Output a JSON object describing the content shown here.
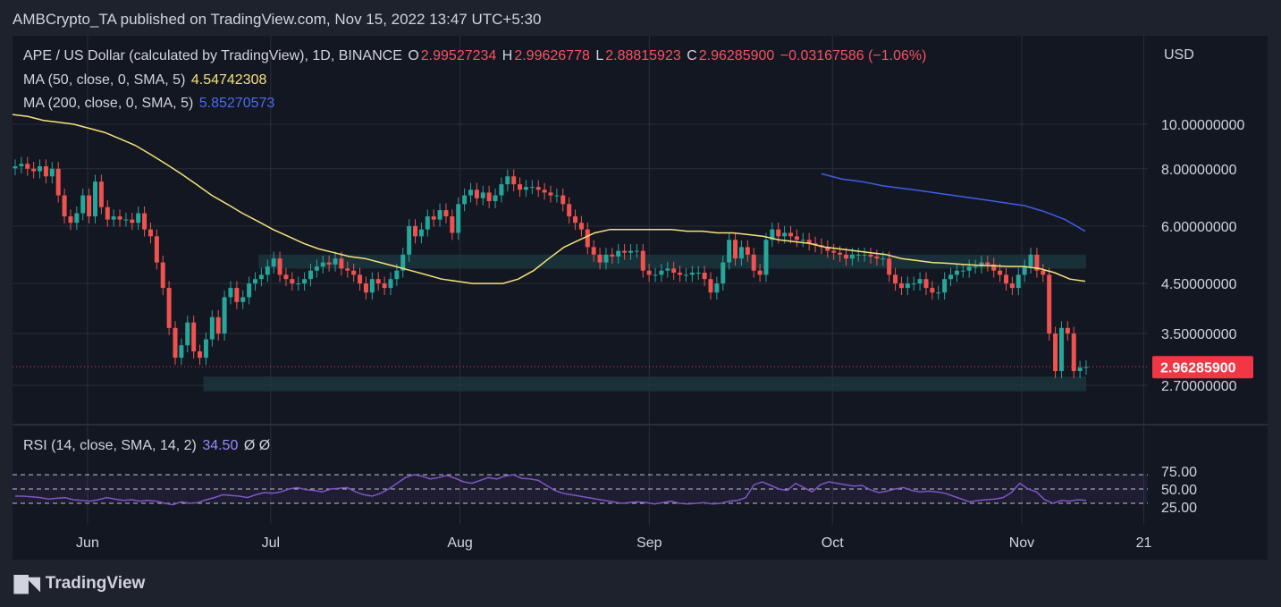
{
  "caption": "AMBCrypto_TA published on TradingView.com, Nov 15, 2022 13:47 UTC+5:30",
  "legend": {
    "symbol": "APE / US Dollar (calculated by TradingView), 1D, BINANCE",
    "o_label": "O",
    "o_value": "2.99527234",
    "h_label": "H",
    "h_value": "2.99626778",
    "l_label": "L",
    "l_value": "2.88815923",
    "c_label": "C",
    "c_value": "2.96285900",
    "change": "−0.03167586 (−1.06%)",
    "ma50_label": "MA (50, close, 0, SMA, 5)",
    "ma50_value": "4.54742308",
    "ma200_label": "MA (200, close, 0, SMA, 5)",
    "ma200_value": "5.85270573",
    "rsi_label": "RSI (14, close, SMA, 14, 2)",
    "rsi_value": "34.50",
    "rsi_extra": "Ø Ø"
  },
  "brand": "TradingView",
  "colors": {
    "up": "#26a69a",
    "down": "#ef5350",
    "ma50": "#f5e27a",
    "ma200": "#3f5ee8",
    "rsi": "#7e57c2",
    "zone": "#1e3a40",
    "price_tag": "#f23645"
  },
  "chart_data": [
    {
      "type": "candlestick",
      "title": "APE / US Dollar (calculated by TradingView), 1D, BINANCE",
      "currency": "USD",
      "y_scale": "log",
      "y_ticks": [
        "10.00000000",
        "8.00000000",
        "6.00000000",
        "4.50000000",
        "3.50000000",
        "2.70000000"
      ],
      "x_ticks": [
        "Jun",
        "Jul",
        "Aug",
        "Sep",
        "Oct",
        "Nov",
        "21"
      ],
      "last_price": "2.96285900",
      "x_range": [
        "2022-05-20",
        "2022-11-15"
      ],
      "closes": [
        8.1,
        8.2,
        8.0,
        7.9,
        8.1,
        7.7,
        8.0,
        7.0,
        6.3,
        6.1,
        6.4,
        7.0,
        6.3,
        7.5,
        6.6,
        6.2,
        6.3,
        6.2,
        6.2,
        6.1,
        6.4,
        5.9,
        5.7,
        5.0,
        4.4,
        3.6,
        3.1,
        3.3,
        3.7,
        3.2,
        3.1,
        3.4,
        3.8,
        3.5,
        4.2,
        4.4,
        4.1,
        4.2,
        4.5,
        4.6,
        4.7,
        4.9,
        5.1,
        4.7,
        4.6,
        4.5,
        4.5,
        4.6,
        4.8,
        4.9,
        5.0,
        4.95,
        5.1,
        4.85,
        4.8,
        4.7,
        4.5,
        4.3,
        4.6,
        4.5,
        4.4,
        4.6,
        4.8,
        5.2,
        6.0,
        5.7,
        5.9,
        6.3,
        6.2,
        6.5,
        6.3,
        5.8,
        6.7,
        7.0,
        7.2,
        6.9,
        7.1,
        6.8,
        7.0,
        7.4,
        7.7,
        7.4,
        7.2,
        7.3,
        7.3,
        7.2,
        7.1,
        7.0,
        7.0,
        6.7,
        6.3,
        6.1,
        5.9,
        5.4,
        5.2,
        5.0,
        5.2,
        5.15,
        5.3,
        5.25,
        5.3,
        5.3,
        4.8,
        4.7,
        4.7,
        4.8,
        4.85,
        4.75,
        4.7,
        4.7,
        4.75,
        4.75,
        4.6,
        4.3,
        4.5,
        5.0,
        5.6,
        5.1,
        5.4,
        5.2,
        4.8,
        4.7,
        5.6,
        5.9,
        5.7,
        5.8,
        5.7,
        5.6,
        5.6,
        5.5,
        5.45,
        5.4,
        5.3,
        5.25,
        5.2,
        5.1,
        5.2,
        5.2,
        5.2,
        5.15,
        5.1,
        5.1,
        4.7,
        4.5,
        4.4,
        4.5,
        4.5,
        4.6,
        4.4,
        4.3,
        4.3,
        4.6,
        4.7,
        4.8,
        4.8,
        4.9,
        4.9,
        5.0,
        4.95,
        4.8,
        4.7,
        4.5,
        4.4,
        4.7,
        4.9,
        5.2,
        4.8,
        4.7,
        3.5,
        2.9,
        3.6,
        3.5,
        2.9,
        2.95,
        2.96
      ],
      "ma50": [
        10.5,
        10.4,
        10.2,
        10.1,
        10.0,
        9.8,
        9.6,
        9.3,
        9.0,
        8.6,
        8.2,
        7.8,
        7.4,
        7.0,
        6.7,
        6.4,
        6.15,
        5.9,
        5.7,
        5.5,
        5.35,
        5.25,
        5.15,
        5.1,
        5.0,
        4.9,
        4.8,
        4.7,
        4.6,
        4.55,
        4.5,
        4.5,
        4.5,
        4.6,
        4.8,
        5.1,
        5.4,
        5.6,
        5.8,
        5.9,
        5.9,
        5.9,
        5.9,
        5.9,
        5.85,
        5.85,
        5.8,
        5.8,
        5.75,
        5.7,
        5.6,
        5.55,
        5.5,
        5.4,
        5.35,
        5.3,
        5.25,
        5.2,
        5.1,
        5.05,
        5.0,
        4.98,
        4.95,
        4.93,
        4.92,
        4.9,
        4.9,
        4.85,
        4.75,
        4.6,
        4.55
      ],
      "ma200": [
        7.8,
        7.6,
        7.5,
        7.35,
        7.25,
        7.15,
        7.05,
        6.95,
        6.85,
        6.75,
        6.65,
        6.45,
        6.2,
        5.85
      ],
      "zones": [
        {
          "from": "2022-06-29",
          "to": "2022-11-15",
          "low": 4.85,
          "high": 5.2
        },
        {
          "from": "2022-06-20",
          "to": "2022-11-15",
          "low": 2.62,
          "high": 2.82
        }
      ]
    },
    {
      "type": "line",
      "title": "RSI (14, close, SMA, 14, 2)",
      "y_ticks": [
        "75.00",
        "50.00",
        "25.00"
      ],
      "bands": [
        70,
        50,
        30
      ],
      "values": [
        40,
        40,
        39,
        38,
        36,
        37,
        38,
        35,
        34,
        33,
        35,
        38,
        36,
        34,
        35,
        33,
        34,
        33,
        30,
        28,
        32,
        30,
        31,
        35,
        38,
        42,
        41,
        40,
        38,
        42,
        45,
        44,
        46,
        50,
        52,
        49,
        48,
        46,
        50,
        51,
        52,
        46,
        42,
        40,
        44,
        50,
        58,
        66,
        70,
        68,
        64,
        66,
        69,
        65,
        60,
        58,
        62,
        66,
        64,
        68,
        70,
        65,
        64,
        62,
        55,
        48,
        44,
        42,
        40,
        38,
        36,
        34,
        32,
        30,
        31,
        32,
        31,
        29,
        31,
        33,
        30,
        29,
        30,
        31,
        29,
        30,
        33,
        34,
        38,
        56,
        60,
        55,
        50,
        48,
        58,
        52,
        46,
        56,
        60,
        58,
        56,
        54,
        55,
        49,
        45,
        47,
        50,
        52,
        48,
        46,
        47,
        46,
        44,
        40,
        36,
        32,
        34,
        35,
        36,
        38,
        45,
        58,
        50,
        46,
        35,
        30,
        34,
        33,
        35,
        34
      ],
      "last_value": "34.50"
    }
  ]
}
